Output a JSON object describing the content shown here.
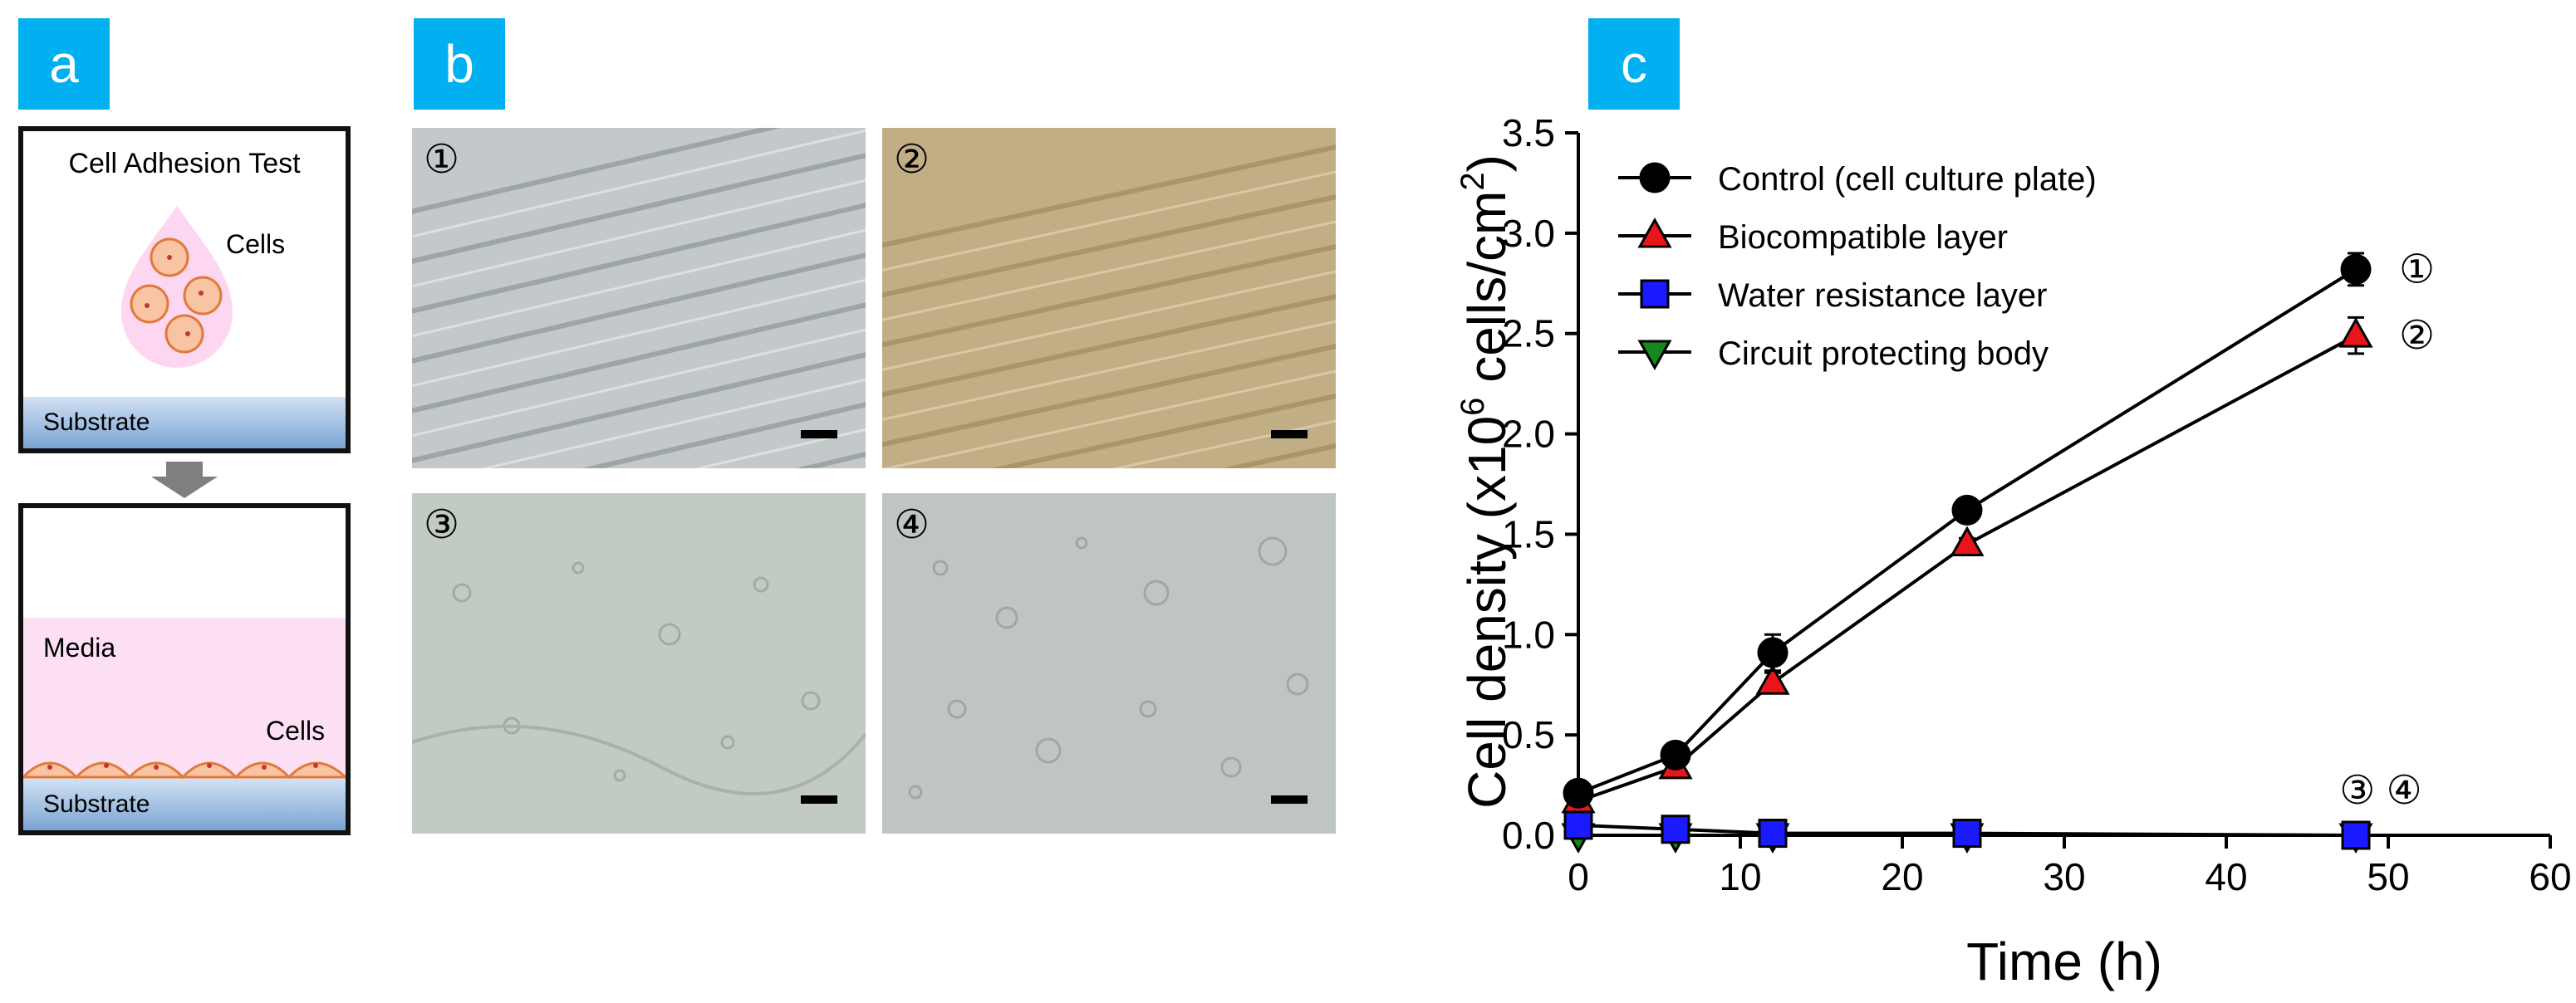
{
  "panel_labels": {
    "a": "a",
    "b": "b",
    "c": "c"
  },
  "panel_a": {
    "title": "Cell Adhesion Test",
    "cells_label_top": "Cells",
    "substrate_top": "Substrate",
    "media_label": "Media",
    "cells_label_bottom": "Cells",
    "substrate_bottom": "Substrate"
  },
  "panel_b": {
    "photos": [
      {
        "num": "①"
      },
      {
        "num": "②"
      },
      {
        "num": "③"
      },
      {
        "num": "④"
      }
    ]
  },
  "chart_data": {
    "type": "scatter",
    "xlabel": "Time (h)",
    "ylabel_prefix": "Cell density (x10",
    "ylabel_exp": "6",
    "ylabel_mid": " cells/cm",
    "ylabel_exp2": "2",
    "ylabel_suffix": ")",
    "xlim": [
      0,
      60
    ],
    "ylim": [
      0,
      3.5
    ],
    "xticks": [
      "0",
      "10",
      "20",
      "30",
      "40",
      "50",
      "60"
    ],
    "yticks": [
      "0.0",
      "0.5",
      "1.0",
      "1.5",
      "2.0",
      "2.5",
      "3.0",
      "3.5"
    ],
    "legend_position": "top-left",
    "series": [
      {
        "name": "Control (cell culture plate)",
        "marker": "circle",
        "color": "#000000",
        "x": [
          0,
          6,
          12,
          24,
          48
        ],
        "y": [
          0.21,
          0.4,
          0.91,
          1.62,
          2.82
        ],
        "err": [
          0.02,
          0.03,
          0.09,
          0.03,
          0.08
        ]
      },
      {
        "name": "Biocompatible layer",
        "marker": "triangle-up",
        "color": "#e8161a",
        "x": [
          0,
          6,
          12,
          24,
          48
        ],
        "y": [
          0.17,
          0.34,
          0.76,
          1.45,
          2.49
        ],
        "err": [
          0.02,
          0.02,
          0.05,
          0.03,
          0.09
        ]
      },
      {
        "name": "Water resistance layer",
        "marker": "square",
        "color": "#1a1aff",
        "x": [
          0,
          6,
          12,
          24,
          48
        ],
        "y": [
          0.05,
          0.03,
          0.01,
          0.01,
          0.0
        ],
        "err": [
          0,
          0,
          0,
          0,
          0
        ]
      },
      {
        "name": "Circuit protecting body",
        "marker": "triangle-down",
        "color": "#13891d",
        "x": [
          0,
          6,
          12,
          24,
          48
        ],
        "y": [
          0.0,
          0.0,
          0.0,
          0.0,
          0.0
        ],
        "err": [
          0,
          0,
          0,
          0,
          0
        ]
      }
    ],
    "annotations": [
      "①",
      "②",
      "③ ④"
    ]
  }
}
